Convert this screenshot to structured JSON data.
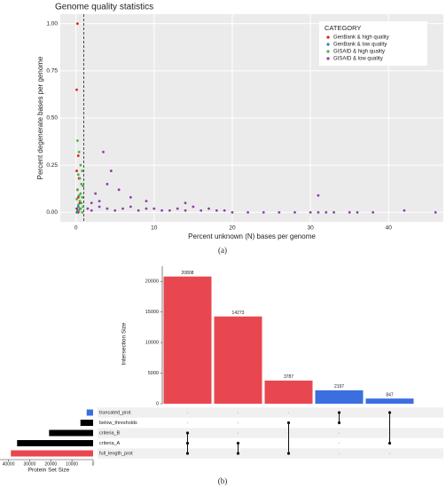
{
  "chart_data": [
    {
      "type": "scatter",
      "title": "Genome quality statistics",
      "xlabel": "Percent unknown (N) bases per genome",
      "ylabel": "Percent degenerate bases per genome",
      "xlim": [
        -2,
        47
      ],
      "ylim": [
        -0.05,
        1.05
      ],
      "xticks": [
        0,
        10,
        20,
        30,
        40
      ],
      "yticks": [
        {
          "value": 0,
          "label": "0.00"
        },
        {
          "value": 0.25,
          "label": "0.25"
        },
        {
          "value": 0.5,
          "label": "0.50"
        },
        {
          "value": 0.75,
          "label": "0.75"
        },
        {
          "value": 1,
          "label": "1.00"
        }
      ],
      "vline": 1,
      "grid": true,
      "legend_title": "CATEGORY",
      "legend": "upper right",
      "caption": "(a)",
      "series": [
        {
          "name": "GenBank & high quality",
          "color": "#e41a1c",
          "x": [
            0.1,
            0.2,
            0.3,
            0.1,
            0.4,
            0.2,
            0.3,
            0.5,
            0.1,
            0.3
          ],
          "values": [
            0.65,
            1.0,
            0.3,
            0.22,
            0.18,
            0.12,
            0.08,
            0.05,
            0.02,
            0.0
          ]
        },
        {
          "name": "GenBank & low quality",
          "color": "#377eb8",
          "x": [
            0.1,
            0.2,
            0.5,
            0.3
          ],
          "values": [
            0.0,
            0.01,
            0.02,
            0.03
          ]
        },
        {
          "name": "GISAID & high quality",
          "color": "#4daf4a",
          "x": [
            0.2,
            0.4,
            0.6,
            0.8,
            0.3,
            0.5,
            0.7,
            0.9,
            0.2,
            0.6,
            0.4,
            0.8,
            0.1,
            0.5,
            0.7,
            0.3,
            0.9,
            0.6,
            0.4,
            0.8
          ],
          "values": [
            0.38,
            0.32,
            0.25,
            0.22,
            0.2,
            0.18,
            0.15,
            0.14,
            0.12,
            0.1,
            0.09,
            0.08,
            0.07,
            0.06,
            0.05,
            0.04,
            0.03,
            0.02,
            0.01,
            0.0
          ]
        },
        {
          "name": "GISAID & low quality",
          "color": "#8e3fa3",
          "x": [
            1.5,
            2,
            3,
            4,
            5,
            6,
            7,
            8,
            9,
            10,
            11,
            12,
            13,
            14,
            15,
            16,
            17,
            18,
            19,
            20,
            22,
            24,
            26,
            28,
            30,
            31,
            32,
            33,
            35,
            36,
            38,
            42,
            46,
            2.5,
            3.5,
            4.5,
            5.5,
            7,
            9,
            14,
            31,
            4,
            3,
            2
          ],
          "values": [
            0.02,
            0.01,
            0.03,
            0.02,
            0.01,
            0.02,
            0.03,
            0.01,
            0.02,
            0.02,
            0.01,
            0.01,
            0.02,
            0.01,
            0.03,
            0.01,
            0.02,
            0.01,
            0.01,
            0.0,
            0.0,
            0.0,
            0.0,
            0.0,
            0.0,
            0.0,
            0.0,
            0.0,
            0.0,
            0.0,
            0.0,
            0.01,
            0.0,
            0.1,
            0.32,
            0.22,
            0.12,
            0.08,
            0.06,
            0.05,
            0.09,
            0.15,
            0.06,
            0.05
          ]
        }
      ]
    },
    {
      "type": "upset",
      "ylabel": "Intersection Size",
      "caption": "(b)",
      "values": [
        20808,
        14273,
        3787,
        2197,
        847
      ],
      "colors": [
        "#e8474f",
        "#e8474f",
        "#e8474f",
        "#3b6fe0",
        "#3b6fe0"
      ],
      "ylim": [
        0,
        22500
      ],
      "yticks": [
        0,
        5000,
        10000,
        15000,
        20000
      ],
      "sets": [
        "truncated_prot",
        "below_thresholds",
        "criteria_B",
        "criteria_A",
        "full_length_prot"
      ],
      "set_sizes": [
        3044,
        5984,
        20808,
        35928,
        38868
      ],
      "set_colors": [
        "#3b6fe0",
        "#000000",
        "#000000",
        "#000000",
        "#e8474f"
      ],
      "set_xlabel": "Protein Set Size",
      "set_xlim": [
        44000,
        0
      ],
      "set_xticks": [
        40000,
        30000,
        20000,
        10000,
        0
      ],
      "members": [
        [
          2,
          3,
          4
        ],
        [
          3,
          4
        ],
        [
          1,
          4
        ],
        [
          0,
          1
        ],
        [
          0,
          3
        ]
      ]
    }
  ]
}
